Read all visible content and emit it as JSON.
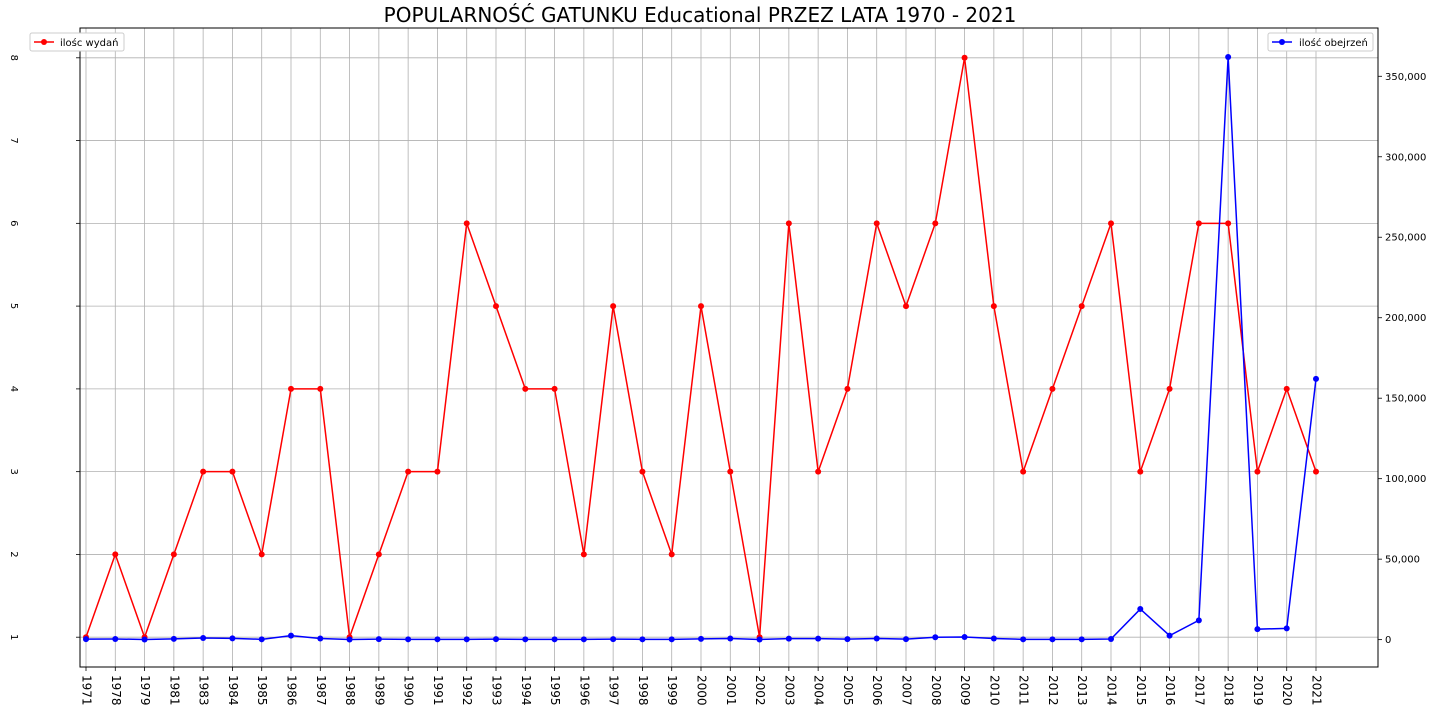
{
  "chart_data": {
    "type": "line",
    "title": "POPULARNOŚĆ GATUNKU Educational PRZEZ LATA 1970 - 2021",
    "categories": [
      "1971",
      "1978",
      "1979",
      "1981",
      "1983",
      "1984",
      "1985",
      "1986",
      "1987",
      "1988",
      "1989",
      "1990",
      "1991",
      "1992",
      "1993",
      "1994",
      "1995",
      "1996",
      "1997",
      "1998",
      "1999",
      "2000",
      "2001",
      "2002",
      "2003",
      "2004",
      "2005",
      "2006",
      "2007",
      "2008",
      "2009",
      "2010",
      "2011",
      "2012",
      "2013",
      "2014",
      "2015",
      "2016",
      "2017",
      "2018",
      "2019",
      "2020",
      "2021"
    ],
    "series": [
      {
        "name": "ilośc wydań",
        "axis": "left",
        "color": "#ff0000",
        "values": [
          1,
          2,
          1,
          2,
          3,
          3,
          2,
          4,
          4,
          1,
          2,
          3,
          3,
          6,
          5,
          4,
          4,
          2,
          5,
          3,
          2,
          5,
          3,
          1,
          6,
          3,
          4,
          6,
          5,
          6,
          8,
          5,
          3,
          4,
          5,
          6,
          3,
          4,
          6,
          6,
          3,
          4,
          3
        ]
      },
      {
        "name": "ilość obejrzeń",
        "axis": "right",
        "color": "#0000ff",
        "values": [
          300,
          400,
          100,
          500,
          1000,
          800,
          200,
          2500,
          700,
          100,
          300,
          200,
          200,
          200,
          300,
          200,
          200,
          200,
          300,
          200,
          200,
          500,
          700,
          100,
          600,
          600,
          300,
          700,
          300,
          1500,
          1600,
          700,
          200,
          200,
          200,
          400,
          19000,
          2500,
          12000,
          362000,
          6500,
          7000,
          162000
        ]
      }
    ],
    "y_left": {
      "ylim": [
        0.64,
        8.36
      ],
      "ticks": [
        1,
        2,
        3,
        4,
        5,
        6,
        7,
        8
      ],
      "tick_labels": [
        "1",
        "2",
        "3",
        "4",
        "5",
        "6",
        "7",
        "8"
      ]
    },
    "y_right": {
      "ylim": [
        -17000,
        380000
      ],
      "ticks": [
        0,
        50000,
        100000,
        150000,
        200000,
        250000,
        300000,
        350000
      ],
      "tick_labels": [
        "0",
        "50,000",
        "100,000",
        "150,000",
        "200,000",
        "250,000",
        "300,000",
        "350,000"
      ]
    },
    "grid": true,
    "legend_left": {
      "placement": "top-left",
      "label": "ilośc wydań"
    },
    "legend_right": {
      "placement": "top-right",
      "label": "ilość obejrzeń"
    }
  }
}
